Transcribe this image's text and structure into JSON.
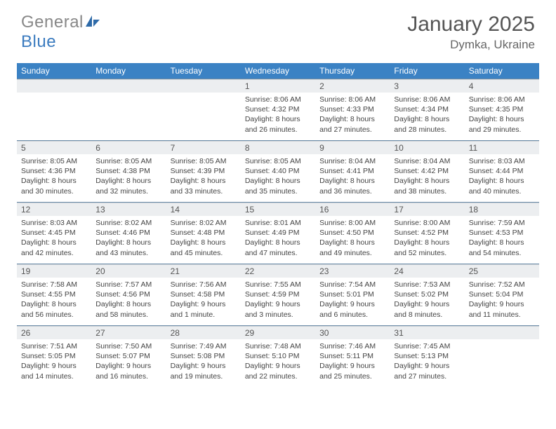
{
  "brand": {
    "part1": "General",
    "part2": "Blue"
  },
  "title": "January 2025",
  "location": "Dymka, Ukraine",
  "colors": {
    "header_bg": "#3b82c4",
    "header_text": "#ffffff",
    "daynum_bg": "#eceef0",
    "rule": "#6a8ba8",
    "logo_blue": "#3b7bbf",
    "logo_gray": "#888888"
  },
  "weekdays": [
    "Sunday",
    "Monday",
    "Tuesday",
    "Wednesday",
    "Thursday",
    "Friday",
    "Saturday"
  ],
  "weeks": [
    [
      {
        "n": "",
        "sr": "",
        "ss": "",
        "dl": ""
      },
      {
        "n": "",
        "sr": "",
        "ss": "",
        "dl": ""
      },
      {
        "n": "",
        "sr": "",
        "ss": "",
        "dl": ""
      },
      {
        "n": "1",
        "sr": "Sunrise: 8:06 AM",
        "ss": "Sunset: 4:32 PM",
        "dl": "Daylight: 8 hours and 26 minutes."
      },
      {
        "n": "2",
        "sr": "Sunrise: 8:06 AM",
        "ss": "Sunset: 4:33 PM",
        "dl": "Daylight: 8 hours and 27 minutes."
      },
      {
        "n": "3",
        "sr": "Sunrise: 8:06 AM",
        "ss": "Sunset: 4:34 PM",
        "dl": "Daylight: 8 hours and 28 minutes."
      },
      {
        "n": "4",
        "sr": "Sunrise: 8:06 AM",
        "ss": "Sunset: 4:35 PM",
        "dl": "Daylight: 8 hours and 29 minutes."
      }
    ],
    [
      {
        "n": "5",
        "sr": "Sunrise: 8:05 AM",
        "ss": "Sunset: 4:36 PM",
        "dl": "Daylight: 8 hours and 30 minutes."
      },
      {
        "n": "6",
        "sr": "Sunrise: 8:05 AM",
        "ss": "Sunset: 4:38 PM",
        "dl": "Daylight: 8 hours and 32 minutes."
      },
      {
        "n": "7",
        "sr": "Sunrise: 8:05 AM",
        "ss": "Sunset: 4:39 PM",
        "dl": "Daylight: 8 hours and 33 minutes."
      },
      {
        "n": "8",
        "sr": "Sunrise: 8:05 AM",
        "ss": "Sunset: 4:40 PM",
        "dl": "Daylight: 8 hours and 35 minutes."
      },
      {
        "n": "9",
        "sr": "Sunrise: 8:04 AM",
        "ss": "Sunset: 4:41 PM",
        "dl": "Daylight: 8 hours and 36 minutes."
      },
      {
        "n": "10",
        "sr": "Sunrise: 8:04 AM",
        "ss": "Sunset: 4:42 PM",
        "dl": "Daylight: 8 hours and 38 minutes."
      },
      {
        "n": "11",
        "sr": "Sunrise: 8:03 AM",
        "ss": "Sunset: 4:44 PM",
        "dl": "Daylight: 8 hours and 40 minutes."
      }
    ],
    [
      {
        "n": "12",
        "sr": "Sunrise: 8:03 AM",
        "ss": "Sunset: 4:45 PM",
        "dl": "Daylight: 8 hours and 42 minutes."
      },
      {
        "n": "13",
        "sr": "Sunrise: 8:02 AM",
        "ss": "Sunset: 4:46 PM",
        "dl": "Daylight: 8 hours and 43 minutes."
      },
      {
        "n": "14",
        "sr": "Sunrise: 8:02 AM",
        "ss": "Sunset: 4:48 PM",
        "dl": "Daylight: 8 hours and 45 minutes."
      },
      {
        "n": "15",
        "sr": "Sunrise: 8:01 AM",
        "ss": "Sunset: 4:49 PM",
        "dl": "Daylight: 8 hours and 47 minutes."
      },
      {
        "n": "16",
        "sr": "Sunrise: 8:00 AM",
        "ss": "Sunset: 4:50 PM",
        "dl": "Daylight: 8 hours and 49 minutes."
      },
      {
        "n": "17",
        "sr": "Sunrise: 8:00 AM",
        "ss": "Sunset: 4:52 PM",
        "dl": "Daylight: 8 hours and 52 minutes."
      },
      {
        "n": "18",
        "sr": "Sunrise: 7:59 AM",
        "ss": "Sunset: 4:53 PM",
        "dl": "Daylight: 8 hours and 54 minutes."
      }
    ],
    [
      {
        "n": "19",
        "sr": "Sunrise: 7:58 AM",
        "ss": "Sunset: 4:55 PM",
        "dl": "Daylight: 8 hours and 56 minutes."
      },
      {
        "n": "20",
        "sr": "Sunrise: 7:57 AM",
        "ss": "Sunset: 4:56 PM",
        "dl": "Daylight: 8 hours and 58 minutes."
      },
      {
        "n": "21",
        "sr": "Sunrise: 7:56 AM",
        "ss": "Sunset: 4:58 PM",
        "dl": "Daylight: 9 hours and 1 minute."
      },
      {
        "n": "22",
        "sr": "Sunrise: 7:55 AM",
        "ss": "Sunset: 4:59 PM",
        "dl": "Daylight: 9 hours and 3 minutes."
      },
      {
        "n": "23",
        "sr": "Sunrise: 7:54 AM",
        "ss": "Sunset: 5:01 PM",
        "dl": "Daylight: 9 hours and 6 minutes."
      },
      {
        "n": "24",
        "sr": "Sunrise: 7:53 AM",
        "ss": "Sunset: 5:02 PM",
        "dl": "Daylight: 9 hours and 8 minutes."
      },
      {
        "n": "25",
        "sr": "Sunrise: 7:52 AM",
        "ss": "Sunset: 5:04 PM",
        "dl": "Daylight: 9 hours and 11 minutes."
      }
    ],
    [
      {
        "n": "26",
        "sr": "Sunrise: 7:51 AM",
        "ss": "Sunset: 5:05 PM",
        "dl": "Daylight: 9 hours and 14 minutes."
      },
      {
        "n": "27",
        "sr": "Sunrise: 7:50 AM",
        "ss": "Sunset: 5:07 PM",
        "dl": "Daylight: 9 hours and 16 minutes."
      },
      {
        "n": "28",
        "sr": "Sunrise: 7:49 AM",
        "ss": "Sunset: 5:08 PM",
        "dl": "Daylight: 9 hours and 19 minutes."
      },
      {
        "n": "29",
        "sr": "Sunrise: 7:48 AM",
        "ss": "Sunset: 5:10 PM",
        "dl": "Daylight: 9 hours and 22 minutes."
      },
      {
        "n": "30",
        "sr": "Sunrise: 7:46 AM",
        "ss": "Sunset: 5:11 PM",
        "dl": "Daylight: 9 hours and 25 minutes."
      },
      {
        "n": "31",
        "sr": "Sunrise: 7:45 AM",
        "ss": "Sunset: 5:13 PM",
        "dl": "Daylight: 9 hours and 27 minutes."
      },
      {
        "n": "",
        "sr": "",
        "ss": "",
        "dl": ""
      }
    ]
  ]
}
